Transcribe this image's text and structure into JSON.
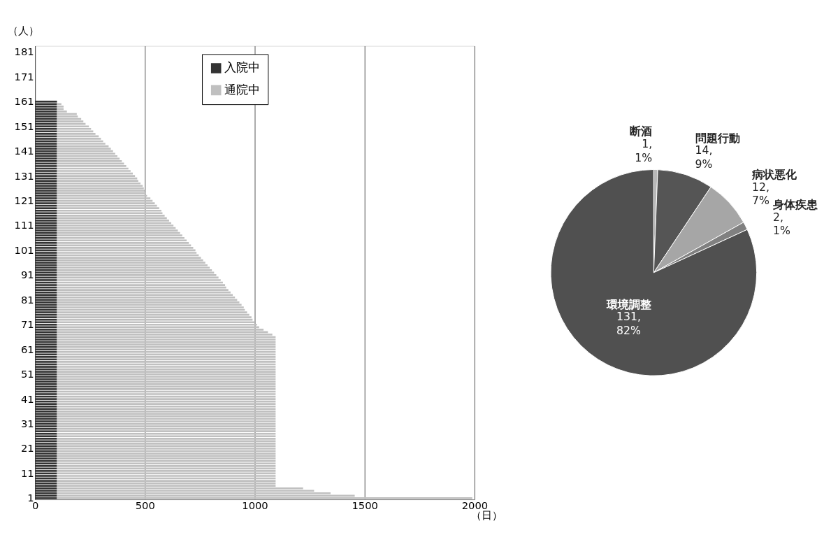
{
  "chart_data": [
    {
      "type": "bar",
      "orientation": "horizontal",
      "stacked": true,
      "xlabel": "（日）",
      "ylabel": "（人）",
      "categories": [
        null,
        null,
        "181",
        null,
        null,
        null,
        null,
        null,
        null,
        null,
        null,
        null,
        "171",
        null,
        null,
        null,
        null,
        null,
        null,
        null,
        null,
        null,
        "161",
        null,
        null,
        null,
        null,
        null,
        null,
        null,
        null,
        null,
        "151",
        null,
        null,
        null,
        null,
        null,
        null,
        null,
        null,
        null,
        "141",
        null,
        null,
        null,
        null,
        null,
        null,
        null,
        null,
        null,
        "131",
        null,
        null,
        null,
        null,
        null,
        null,
        null,
        null,
        null,
        "121",
        null,
        null,
        null,
        null,
        null,
        null,
        null,
        null,
        null,
        "111",
        null,
        null,
        null,
        null,
        null,
        null,
        null,
        null,
        null,
        "101",
        null,
        null,
        null,
        null,
        null,
        null,
        null,
        null,
        null,
        "91",
        null,
        null,
        null,
        null,
        null,
        null,
        null,
        null,
        null,
        "81",
        null,
        null,
        null,
        null,
        null,
        null,
        null,
        null,
        null,
        "71",
        null,
        null,
        null,
        null,
        null,
        null,
        null,
        null,
        null,
        "61",
        null,
        null,
        null,
        null,
        null,
        null,
        null,
        null,
        null,
        "51",
        null,
        null,
        null,
        null,
        null,
        null,
        null,
        null,
        null,
        "41",
        null,
        null,
        null,
        null,
        null,
        null,
        null,
        null,
        null,
        "31",
        null,
        null,
        null,
        null,
        null,
        null,
        null,
        null,
        null,
        "21",
        null,
        null,
        null,
        null,
        null,
        null,
        null,
        null,
        null,
        "11",
        null,
        null,
        null,
        null,
        null,
        null,
        null,
        null,
        null,
        "1"
      ],
      "series": [
        {
          "name": "入院中",
          "color": "#333333",
          "values": [
            null,
            null,
            null,
            null,
            null,
            null,
            null,
            null,
            null,
            null,
            null,
            null,
            null,
            null,
            null,
            null,
            null,
            null,
            null,
            null,
            null,
            null,
            100,
            100,
            100,
            100,
            100,
            100,
            100,
            100,
            100,
            100,
            100,
            100,
            100,
            100,
            100,
            100,
            100,
            100,
            100,
            100,
            100,
            100,
            100,
            100,
            100,
            100,
            100,
            100,
            100,
            100,
            100,
            100,
            100,
            100,
            100,
            100,
            100,
            100,
            100,
            100,
            100,
            100,
            100,
            100,
            100,
            100,
            100,
            100,
            100,
            100,
            100,
            100,
            100,
            100,
            100,
            100,
            100,
            100,
            100,
            100,
            100,
            100,
            100,
            100,
            100,
            100,
            100,
            100,
            100,
            100,
            100,
            100,
            100,
            100,
            100,
            100,
            100,
            100,
            100,
            100,
            100,
            100,
            100,
            100,
            100,
            100,
            100,
            100,
            100,
            100,
            100,
            100,
            100,
            100,
            100,
            100,
            100,
            100,
            100,
            100,
            100,
            100,
            100,
            100,
            100,
            100,
            100,
            100,
            100,
            100,
            100,
            100,
            100,
            100,
            100,
            100,
            100,
            100,
            100,
            100,
            100,
            100,
            100,
            100,
            100,
            100,
            100,
            100,
            100,
            100,
            100,
            100,
            100,
            100,
            100,
            100,
            100,
            100,
            100,
            100,
            100,
            100,
            100,
            100,
            100,
            100,
            100,
            100,
            100,
            100,
            100,
            100,
            100,
            100,
            100,
            100,
            100,
            100,
            100,
            100,
            100
          ]
        },
        {
          "name": "通院中",
          "color": "#c0c0c0",
          "values": [
            null,
            null,
            null,
            null,
            null,
            null,
            null,
            null,
            null,
            null,
            null,
            null,
            null,
            null,
            null,
            null,
            null,
            null,
            null,
            null,
            null,
            null,
            0,
            20,
            30,
            30,
            45,
            90,
            95,
            110,
            120,
            130,
            145,
            155,
            165,
            175,
            190,
            200,
            210,
            220,
            235,
            245,
            255,
            265,
            275,
            285,
            295,
            305,
            315,
            325,
            335,
            345,
            355,
            365,
            370,
            380,
            390,
            395,
            400,
            405,
            410,
            425,
            435,
            445,
            455,
            465,
            475,
            480,
            490,
            500,
            510,
            520,
            530,
            540,
            550,
            560,
            570,
            580,
            590,
            600,
            610,
            620,
            630,
            635,
            645,
            655,
            665,
            675,
            685,
            695,
            705,
            715,
            725,
            735,
            745,
            755,
            765,
            770,
            780,
            790,
            800,
            810,
            820,
            830,
            840,
            850,
            855,
            865,
            875,
            885,
            890,
            900,
            910,
            920,
            940,
            960,
            980,
            995,
            995,
            995,
            995,
            995,
            995,
            995,
            995,
            995,
            995,
            995,
            995,
            995,
            995,
            995,
            995,
            995,
            995,
            995,
            995,
            995,
            995,
            995,
            995,
            995,
            995,
            995,
            995,
            995,
            995,
            995,
            995,
            995,
            995,
            995,
            995,
            995,
            995,
            995,
            995,
            995,
            995,
            995,
            995,
            995,
            995,
            995,
            995,
            995,
            995,
            995,
            995,
            995,
            995,
            995,
            995,
            995,
            995,
            995,
            995,
            995,
            1120,
            1170,
            1245,
            1355,
            1890
          ]
        }
      ],
      "xlim": [
        0,
        2000
      ],
      "xticks": [
        0,
        500,
        1000,
        1500,
        2000
      ],
      "grid": "x",
      "legend": "top"
    },
    {
      "type": "pie",
      "categories": [
        "断酒",
        "問題行動",
        "病状悪化",
        "身体疾患",
        "環境調整"
      ],
      "values": [
        1,
        14,
        12,
        2,
        131
      ],
      "colors": [
        "#b8b8b8",
        "#555555",
        "#a6a6a6",
        "#808080",
        "#505050"
      ],
      "value_labels": [
        "1, 1%",
        "14, 9%",
        "12, 7%",
        "2, 1%",
        "131, 82%"
      ]
    }
  ]
}
